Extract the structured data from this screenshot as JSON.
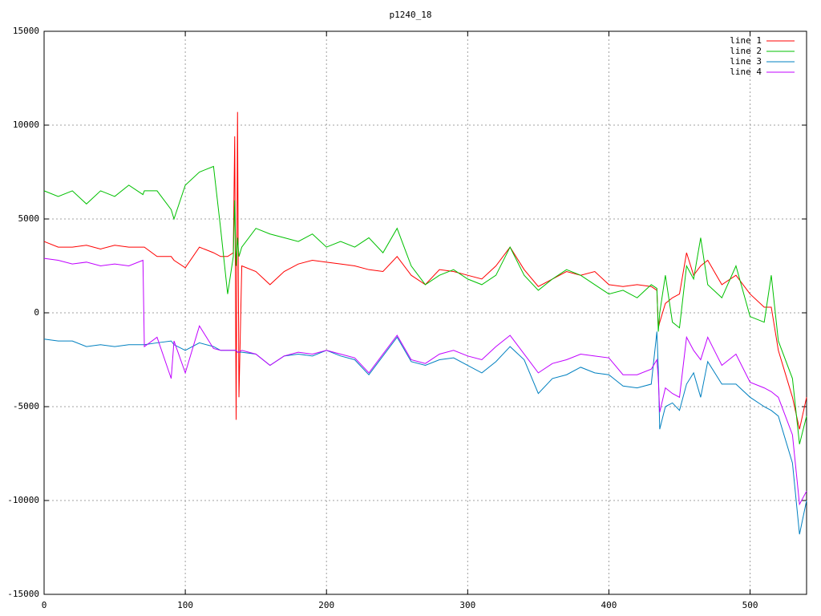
{
  "chart_data": {
    "type": "line",
    "title": "p1240_18",
    "x": [
      0,
      10,
      20,
      30,
      40,
      50,
      60,
      70,
      71,
      80,
      90,
      92,
      100,
      110,
      120,
      125,
      130,
      134,
      135,
      136,
      137,
      138,
      140,
      150,
      160,
      170,
      180,
      190,
      200,
      210,
      220,
      230,
      240,
      250,
      260,
      270,
      280,
      290,
      300,
      310,
      320,
      330,
      340,
      350,
      360,
      370,
      380,
      390,
      400,
      410,
      420,
      430,
      434,
      435,
      436,
      440,
      445,
      450,
      455,
      460,
      465,
      470,
      480,
      490,
      500,
      510,
      515,
      520,
      530,
      535,
      540
    ],
    "series": [
      {
        "name": "line 1",
        "color": "#ff0000",
        "values": [
          3800,
          3500,
          3500,
          3600,
          3400,
          3600,
          3500,
          3500,
          3500,
          3000,
          3000,
          2800,
          2400,
          3500,
          3200,
          3000,
          3000,
          3200,
          9400,
          -5700,
          10700,
          -4500,
          2500,
          2200,
          1500,
          2200,
          2600,
          2800,
          2700,
          2600,
          2500,
          2300,
          2200,
          3000,
          2000,
          1500,
          2300,
          2200,
          2000,
          1800,
          2500,
          3500,
          2300,
          1400,
          1800,
          2200,
          2000,
          2200,
          1500,
          1400,
          1500,
          1400,
          1200,
          -800,
          -500,
          500,
          800,
          1000,
          3200,
          2000,
          2500,
          2800,
          1500,
          2000,
          1000,
          300,
          300,
          -2000,
          -4500,
          -6200,
          -4500
        ]
      },
      {
        "name": "line 2",
        "color": "#00c000",
        "values": [
          6500,
          6200,
          6500,
          5800,
          6500,
          6200,
          6800,
          6300,
          6500,
          6500,
          5500,
          5000,
          6800,
          7500,
          7800,
          4500,
          1000,
          3000,
          6000,
          2500,
          4000,
          3000,
          3500,
          4500,
          4200,
          4000,
          3800,
          4200,
          3500,
          3800,
          3500,
          4000,
          3200,
          4500,
          2500,
          1500,
          2000,
          2300,
          1800,
          1500,
          2000,
          3500,
          2000,
          1200,
          1800,
          2300,
          2000,
          1500,
          1000,
          1200,
          800,
          1500,
          1300,
          -1000,
          0,
          2000,
          -500,
          -800,
          2500,
          1800,
          4000,
          1500,
          800,
          2500,
          -200,
          -500,
          2000,
          -1500,
          -3500,
          -7000,
          -5500
        ]
      },
      {
        "name": "line 3",
        "color": "#0080c0",
        "values": [
          -1400,
          -1500,
          -1500,
          -1800,
          -1700,
          -1800,
          -1700,
          -1700,
          -1700,
          -1600,
          -1500,
          -1700,
          -2000,
          -1600,
          -1800,
          -2000,
          -2000,
          -2000,
          -2000,
          -2000,
          -2100,
          -2100,
          -2100,
          -2200,
          -2800,
          -2300,
          -2200,
          -2300,
          -2000,
          -2300,
          -2500,
          -3300,
          -2300,
          -1300,
          -2600,
          -2800,
          -2500,
          -2400,
          -2800,
          -3200,
          -2600,
          -1800,
          -2500,
          -4300,
          -3500,
          -3300,
          -2900,
          -3200,
          -3300,
          -3900,
          -4000,
          -3800,
          -1000,
          -3000,
          -6200,
          -5000,
          -4800,
          -5200,
          -3800,
          -3200,
          -4500,
          -2600,
          -3800,
          -3800,
          -4500,
          -5000,
          -5200,
          -5500,
          -8000,
          -11800,
          -10000
        ]
      },
      {
        "name": "line 4",
        "color": "#c000ff",
        "values": [
          2900,
          2800,
          2600,
          2700,
          2500,
          2600,
          2500,
          2800,
          -1800,
          -1300,
          -3500,
          -1500,
          -3200,
          -700,
          -1900,
          -2000,
          -2000,
          -2000,
          -2000,
          -2000,
          -2100,
          -2100,
          -2000,
          -2200,
          -2800,
          -2300,
          -2100,
          -2200,
          -2000,
          -2200,
          -2400,
          -3200,
          -2200,
          -1200,
          -2500,
          -2700,
          -2200,
          -2000,
          -2300,
          -2500,
          -1800,
          -1200,
          -2200,
          -3200,
          -2700,
          -2500,
          -2200,
          -2300,
          -2400,
          -3300,
          -3300,
          -3000,
          -2500,
          -3500,
          -5300,
          -4000,
          -4300,
          -4500,
          -1300,
          -2000,
          -2500,
          -1300,
          -2800,
          -2200,
          -3700,
          -4000,
          -4200,
          -4500,
          -6500,
          -10200,
          -9500
        ]
      }
    ],
    "xlim": [
      0,
      540
    ],
    "xticks": [
      0,
      100,
      200,
      300,
      400,
      500
    ],
    "ylim": [
      -15000,
      15000
    ],
    "yticks": [
      -15000,
      -10000,
      -5000,
      0,
      5000,
      10000,
      15000
    ],
    "grid": true,
    "legend": "top-right"
  }
}
